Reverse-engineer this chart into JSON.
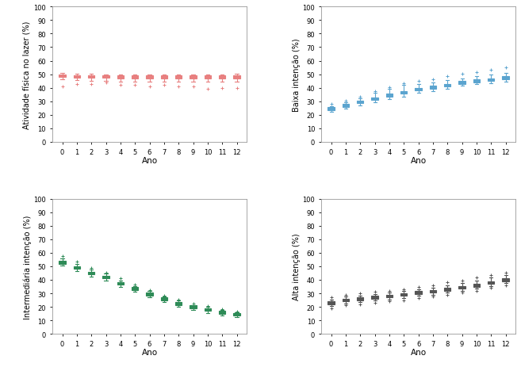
{
  "subplot_titles": [
    "Atividade física no lazer (%)",
    "Baixa intenção (%)",
    "Intermediária intenção (%)",
    "Alta intenção (%)"
  ],
  "xlabel": "Ano",
  "ylim": [
    0,
    100
  ],
  "yticks": [
    0,
    10,
    20,
    30,
    40,
    50,
    60,
    70,
    80,
    90,
    100
  ],
  "xticks": [
    0,
    1,
    2,
    3,
    4,
    5,
    6,
    7,
    8,
    9,
    10,
    11,
    12
  ],
  "n_years": 13,
  "pink_color": "#E88080",
  "blue_color": "#5BA4CF",
  "green_color": "#2E8B57",
  "gray_color": "#555555",
  "pink": {
    "medians": [
      49.0,
      48.5,
      48.5,
      48.3,
      48.3,
      48.2,
      48.2,
      48.2,
      48.2,
      48.2,
      48.0,
      48.0,
      48.3
    ],
    "q1": [
      48.0,
      47.5,
      47.3,
      47.2,
      47.0,
      47.0,
      47.0,
      47.0,
      47.0,
      47.0,
      47.0,
      47.0,
      47.0
    ],
    "q3": [
      50.0,
      49.3,
      49.2,
      49.0,
      49.0,
      49.0,
      49.0,
      49.0,
      49.0,
      49.0,
      49.0,
      49.0,
      49.2
    ],
    "whislo": [
      46.5,
      45.5,
      45.3,
      45.0,
      44.5,
      44.5,
      44.3,
      44.3,
      44.3,
      44.3,
      44.3,
      44.3,
      44.5
    ],
    "whishi": [
      51.2,
      50.5,
      50.3,
      50.0,
      50.0,
      50.0,
      50.0,
      50.0,
      50.0,
      50.0,
      50.0,
      50.0,
      50.2
    ],
    "fliers_lo": [
      41.0,
      43.0,
      43.0,
      44.0,
      42.0,
      42.0,
      41.0,
      42.0,
      41.0,
      41.0,
      39.0,
      40.0,
      40.0
    ],
    "fliers_hi": []
  },
  "blue": {
    "medians": [
      24.5,
      27.0,
      29.5,
      32.0,
      34.5,
      36.5,
      39.0,
      40.5,
      42.0,
      44.0,
      45.0,
      46.0,
      47.5
    ],
    "q1": [
      23.5,
      26.0,
      28.5,
      31.0,
      33.5,
      35.5,
      38.0,
      39.5,
      41.0,
      43.0,
      44.0,
      45.0,
      46.5
    ],
    "q3": [
      25.5,
      28.0,
      30.5,
      33.0,
      35.5,
      37.5,
      40.0,
      41.5,
      43.0,
      45.0,
      46.0,
      47.0,
      48.5
    ],
    "whislo": [
      22.0,
      24.5,
      27.0,
      29.0,
      31.5,
      33.5,
      36.5,
      37.5,
      39.5,
      41.5,
      42.5,
      43.5,
      44.5
    ],
    "whishi": [
      26.5,
      29.0,
      32.0,
      36.0,
      39.0,
      42.0,
      43.0,
      44.0,
      45.5,
      47.0,
      48.5,
      49.5,
      51.0
    ],
    "fliers_lo": [],
    "fliers_hi": [
      28.0,
      30.5,
      33.5,
      37.5,
      40.5,
      43.5,
      45.0,
      46.5,
      48.5,
      50.5,
      51.5,
      53.5,
      55.0
    ]
  },
  "green": {
    "medians": [
      53.0,
      49.0,
      45.0,
      42.0,
      37.5,
      33.5,
      30.0,
      26.0,
      22.5,
      20.0,
      18.0,
      16.0,
      14.5
    ],
    "q1": [
      52.0,
      48.0,
      44.0,
      41.0,
      36.5,
      32.5,
      28.5,
      25.0,
      21.5,
      19.0,
      17.0,
      15.0,
      13.5
    ],
    "q3": [
      54.0,
      50.0,
      46.0,
      43.0,
      38.5,
      34.5,
      30.5,
      27.0,
      23.5,
      21.0,
      19.0,
      17.0,
      15.5
    ],
    "whislo": [
      50.5,
      46.5,
      42.5,
      39.5,
      35.0,
      31.0,
      27.0,
      23.5,
      20.0,
      17.5,
      15.5,
      13.5,
      12.5
    ],
    "whishi": [
      56.0,
      52.0,
      47.5,
      44.5,
      39.5,
      35.5,
      31.5,
      27.5,
      24.5,
      21.5,
      20.0,
      17.5,
      16.0
    ],
    "fliers_lo": [],
    "fliers_hi": [
      57.5,
      53.5,
      49.0,
      45.5,
      41.0,
      36.5,
      32.5,
      28.5,
      25.5,
      22.5,
      20.5,
      18.5,
      16.5
    ]
  },
  "gray": {
    "medians": [
      23.0,
      25.0,
      26.0,
      27.0,
      28.0,
      29.0,
      30.5,
      31.5,
      33.0,
      34.5,
      36.0,
      38.0,
      40.0
    ],
    "q1": [
      22.0,
      24.0,
      25.0,
      26.0,
      27.0,
      28.0,
      29.5,
      30.5,
      32.0,
      33.5,
      35.0,
      37.0,
      39.0
    ],
    "q3": [
      24.0,
      26.0,
      27.0,
      28.0,
      29.0,
      30.0,
      31.5,
      32.5,
      34.0,
      35.5,
      37.0,
      39.0,
      41.0
    ],
    "whislo": [
      20.5,
      22.5,
      23.5,
      24.5,
      25.5,
      26.5,
      28.0,
      29.0,
      30.5,
      32.0,
      33.5,
      35.5,
      37.5
    ],
    "whishi": [
      25.5,
      27.5,
      28.5,
      29.5,
      30.5,
      31.5,
      33.0,
      34.0,
      36.0,
      37.5,
      39.5,
      41.5,
      43.5
    ],
    "fliers_lo": [
      19.0,
      21.0,
      22.0,
      23.0,
      24.0,
      25.0,
      26.5,
      27.5,
      29.0,
      30.5,
      32.0,
      34.0,
      36.0
    ],
    "fliers_hi": [
      27.0,
      29.0,
      30.0,
      31.0,
      32.0,
      33.0,
      35.0,
      36.0,
      38.0,
      39.5,
      41.5,
      43.5,
      45.5
    ]
  }
}
